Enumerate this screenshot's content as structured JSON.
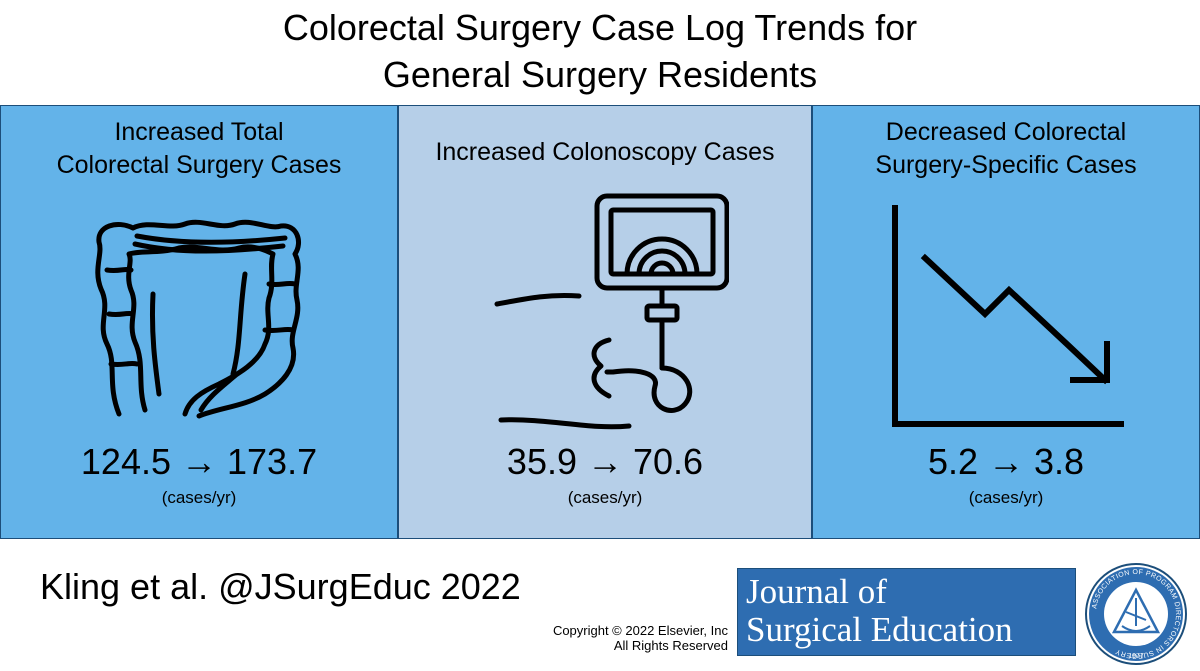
{
  "title": {
    "line1": "Colorectal Surgery Case Log Trends for",
    "line2": "General Surgery Residents"
  },
  "panels": [
    {
      "title_line1": "Increased Total",
      "title_line2": "Colorectal Surgery Cases",
      "value": "124.5 → 173.7",
      "unit": "(cases/yr)",
      "icon": "colon-icon"
    },
    {
      "title_line1": "Increased Colonoscopy Cases",
      "title_line2": "",
      "value": "35.9 → 70.6",
      "unit": "(cases/yr)",
      "icon": "colonoscopy-icon"
    },
    {
      "title_line1": "Decreased Colorectal",
      "title_line2": "Surgery-Specific Cases",
      "value": "5.2 → 3.8",
      "unit": "(cases/yr)",
      "icon": "downward-trend-chart-icon"
    }
  ],
  "citation": "Kling et al. @JSurgEduc 2022",
  "copyright": {
    "line1": "Copyright © 2022  Elsevier, Inc",
    "line2": "All Rights Reserved"
  },
  "journal": {
    "line1": "Journal of",
    "line2": "Surgical Education"
  },
  "seal": {
    "text": "ASSOCIATION OF PROGRAM DIRECTORS IN SURGERY",
    "year": "1977"
  },
  "colors": {
    "panel_blue": "#63b3e9",
    "panel_light_blue": "#b6cfe8",
    "journal_blue": "#2e6db1",
    "border": "#1c4e7a"
  }
}
